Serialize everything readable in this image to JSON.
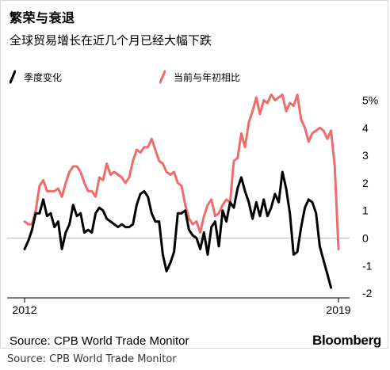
{
  "header": {
    "title": "繁荣与衰退",
    "subtitle": "全球贸易增长在近几个月已经大幅下跌"
  },
  "footer": {
    "source": "Source: CPB World Trade Monitor",
    "brand": "Bloomberg",
    "caption": "Source: CPB World Trade Monitor"
  },
  "colors": {
    "series_qoq": "#000000",
    "series_yoy": "#f26b6b",
    "zero_line": "#bbbbbb",
    "axis": "#000000"
  },
  "chart_data": {
    "type": "line",
    "title": "繁荣与衰退",
    "subtitle": "全球贸易增长在近几个月已经大幅下跌",
    "x_range": [
      "2012-01",
      "2019-01"
    ],
    "x_ticks": [
      "2012",
      "2019"
    ],
    "ylim": [
      -2,
      5.5
    ],
    "y_ticks": [
      {
        "value": 5,
        "label": "5%"
      },
      {
        "value": 4,
        "label": "4"
      },
      {
        "value": 3,
        "label": "3"
      },
      {
        "value": 2,
        "label": "2"
      },
      {
        "value": 1,
        "label": "1"
      },
      {
        "value": 0,
        "label": "0"
      },
      {
        "value": -1,
        "label": "-1"
      },
      {
        "value": -2,
        "label": "-2"
      }
    ],
    "grid": false,
    "legend_position": "top",
    "series": [
      {
        "name": "季度变化",
        "values": [
          [
            "2012-01",
            -0.4
          ],
          [
            "2012-02",
            -0.1
          ],
          [
            "2012-03",
            0.3
          ],
          [
            "2012-04",
            0.9
          ],
          [
            "2012-05",
            0.9
          ],
          [
            "2012-06",
            1.4
          ],
          [
            "2012-07",
            0.8
          ],
          [
            "2012-08",
            0.9
          ],
          [
            "2012-09",
            0.4
          ],
          [
            "2012-10",
            0.6
          ],
          [
            "2012-11",
            -0.4
          ],
          [
            "2012-12",
            0.2
          ],
          [
            "2013-01",
            0.5
          ],
          [
            "2013-02",
            1.2
          ],
          [
            "2013-03",
            0.8
          ],
          [
            "2013-04",
            0.9
          ],
          [
            "2013-05",
            0.2
          ],
          [
            "2013-06",
            0.3
          ],
          [
            "2013-07",
            0.2
          ],
          [
            "2013-08",
            0.9
          ],
          [
            "2013-09",
            1.1
          ],
          [
            "2013-10",
            1.0
          ],
          [
            "2013-11",
            0.7
          ],
          [
            "2013-12",
            0.6
          ],
          [
            "2014-01",
            0.5
          ],
          [
            "2014-02",
            0.4
          ],
          [
            "2014-03",
            0.5
          ],
          [
            "2014-04",
            0.4
          ],
          [
            "2014-05",
            0.4
          ],
          [
            "2014-06",
            0.5
          ],
          [
            "2014-07",
            1.2
          ],
          [
            "2014-08",
            1.6
          ],
          [
            "2014-09",
            1.7
          ],
          [
            "2014-10",
            1.5
          ],
          [
            "2014-11",
            0.9
          ],
          [
            "2014-12",
            0.6
          ],
          [
            "2015-01",
            0.6
          ],
          [
            "2015-02",
            -0.6
          ],
          [
            "2015-03",
            -1.2
          ],
          [
            "2015-04",
            -0.9
          ],
          [
            "2015-05",
            -0.5
          ],
          [
            "2015-06",
            0.9
          ],
          [
            "2015-07",
            0.9
          ],
          [
            "2015-08",
            1.0
          ],
          [
            "2015-09",
            0.3
          ],
          [
            "2015-10",
            0.1
          ],
          [
            "2015-11",
            0.0
          ],
          [
            "2015-12",
            -0.4
          ],
          [
            "2016-01",
            0.2
          ],
          [
            "2016-02",
            -0.6
          ],
          [
            "2016-03",
            0.4
          ],
          [
            "2016-04",
            0.6
          ],
          [
            "2016-05",
            -0.3
          ],
          [
            "2016-06",
            1.0
          ],
          [
            "2016-07",
            0.6
          ],
          [
            "2016-08",
            1.3
          ],
          [
            "2016-09",
            1.1
          ],
          [
            "2016-10",
            1.8
          ],
          [
            "2016-11",
            2.2
          ],
          [
            "2016-12",
            1.7
          ],
          [
            "2017-01",
            1.3
          ],
          [
            "2017-02",
            0.7
          ],
          [
            "2017-03",
            1.3
          ],
          [
            "2017-04",
            0.8
          ],
          [
            "2017-05",
            1.4
          ],
          [
            "2017-06",
            0.8
          ],
          [
            "2017-07",
            1.1
          ],
          [
            "2017-08",
            1.6
          ],
          [
            "2017-09",
            1.3
          ],
          [
            "2017-10",
            2.4
          ],
          [
            "2017-11",
            1.8
          ],
          [
            "2017-12",
            0.9
          ],
          [
            "2018-01",
            -0.6
          ],
          [
            "2018-02",
            -0.5
          ],
          [
            "2018-03",
            0.4
          ],
          [
            "2018-04",
            1.1
          ],
          [
            "2018-05",
            1.4
          ],
          [
            "2018-06",
            1.3
          ],
          [
            "2018-07",
            0.9
          ],
          [
            "2018-08",
            -0.3
          ],
          [
            "2018-09",
            -0.8
          ],
          [
            "2018-10",
            -1.3
          ],
          [
            "2018-11",
            -1.8
          ]
        ]
      },
      {
        "name": "当前与年初相比",
        "values": [
          [
            "2012-01",
            0.6
          ],
          [
            "2012-02",
            0.5
          ],
          [
            "2012-03",
            0.5
          ],
          [
            "2012-04",
            1.0
          ],
          [
            "2012-05",
            1.9
          ],
          [
            "2012-06",
            2.1
          ],
          [
            "2012-07",
            1.7
          ],
          [
            "2012-08",
            1.7
          ],
          [
            "2012-09",
            1.7
          ],
          [
            "2012-10",
            1.8
          ],
          [
            "2012-11",
            1.5
          ],
          [
            "2012-12",
            2.0
          ],
          [
            "2013-01",
            2.4
          ],
          [
            "2013-02",
            2.6
          ],
          [
            "2013-03",
            2.6
          ],
          [
            "2013-04",
            2.4
          ],
          [
            "2013-05",
            2.0
          ],
          [
            "2013-06",
            1.7
          ],
          [
            "2013-07",
            1.7
          ],
          [
            "2013-08",
            1.5
          ],
          [
            "2013-09",
            2.2
          ],
          [
            "2013-10",
            2.1
          ],
          [
            "2013-11",
            2.7
          ],
          [
            "2013-12",
            2.3
          ],
          [
            "2014-01",
            2.4
          ],
          [
            "2014-02",
            2.3
          ],
          [
            "2014-03",
            2.2
          ],
          [
            "2014-04",
            2.0
          ],
          [
            "2014-05",
            2.2
          ],
          [
            "2014-06",
            2.8
          ],
          [
            "2014-07",
            3.2
          ],
          [
            "2014-08",
            3.1
          ],
          [
            "2014-09",
            3.3
          ],
          [
            "2014-10",
            3.3
          ],
          [
            "2014-11",
            3.6
          ],
          [
            "2014-12",
            3.2
          ],
          [
            "2015-01",
            2.8
          ],
          [
            "2015-02",
            2.7
          ],
          [
            "2015-03",
            2.4
          ],
          [
            "2015-04",
            2.3
          ],
          [
            "2015-05",
            2.4
          ],
          [
            "2015-06",
            2.0
          ],
          [
            "2015-07",
            1.9
          ],
          [
            "2015-08",
            1.2
          ],
          [
            "2015-09",
            0.7
          ],
          [
            "2015-10",
            0.5
          ],
          [
            "2015-11",
            0.6
          ],
          [
            "2015-12",
            0.2
          ],
          [
            "2016-01",
            0.8
          ],
          [
            "2016-02",
            1.2
          ],
          [
            "2016-03",
            1.4
          ],
          [
            "2016-04",
            0.8
          ],
          [
            "2016-05",
            0.9
          ],
          [
            "2016-06",
            1.2
          ],
          [
            "2016-07",
            1.4
          ],
          [
            "2016-08",
            1.3
          ],
          [
            "2016-09",
            2.8
          ],
          [
            "2016-10",
            2.9
          ],
          [
            "2016-11",
            3.8
          ],
          [
            "2016-12",
            3.3
          ],
          [
            "2017-01",
            4.2
          ],
          [
            "2017-02",
            4.6
          ],
          [
            "2017-03",
            5.1
          ],
          [
            "2017-04",
            4.5
          ],
          [
            "2017-05",
            5.0
          ],
          [
            "2017-06",
            4.9
          ],
          [
            "2017-07",
            5.2
          ],
          [
            "2017-08",
            5.0
          ],
          [
            "2017-09",
            5.1
          ],
          [
            "2017-10",
            5.2
          ],
          [
            "2017-11",
            4.6
          ],
          [
            "2017-12",
            4.9
          ],
          [
            "2018-01",
            4.8
          ],
          [
            "2018-02",
            5.2
          ],
          [
            "2018-03",
            4.3
          ],
          [
            "2018-04",
            4.0
          ],
          [
            "2018-05",
            3.5
          ],
          [
            "2018-06",
            3.8
          ],
          [
            "2018-07",
            3.9
          ],
          [
            "2018-08",
            4.0
          ],
          [
            "2018-09",
            3.9
          ],
          [
            "2018-10",
            3.6
          ],
          [
            "2018-11",
            3.9
          ],
          [
            "2018-12",
            2.6
          ],
          [
            "2019-01",
            -0.4
          ]
        ]
      }
    ]
  }
}
